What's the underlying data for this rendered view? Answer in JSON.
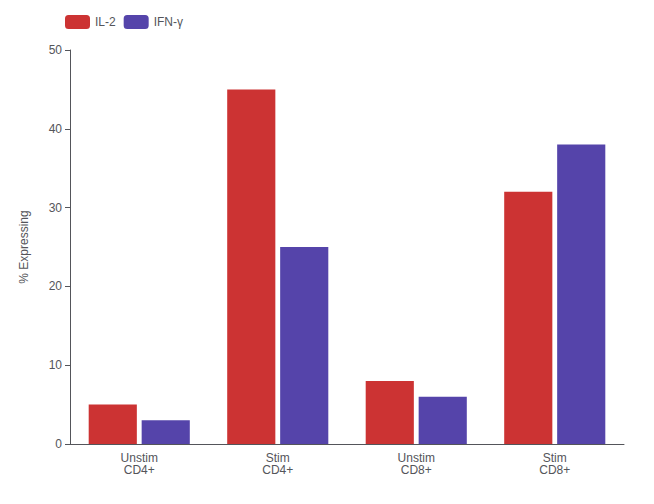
{
  "chart_data": {
    "type": "bar",
    "categories": [
      "Unstim\nCD4+",
      "Stim\nCD4+",
      "Unstim\nCD8+",
      "Stim\nCD8+"
    ],
    "series": [
      {
        "name": "IL-2",
        "color": "#cc3333",
        "values": [
          5,
          45,
          8,
          32
        ]
      },
      {
        "name": "IFN-γ",
        "color": "#5544aa",
        "values": [
          3,
          25,
          6,
          38
        ]
      }
    ],
    "ylabel": "% Expressing",
    "ylim": [
      0,
      50
    ],
    "yticks": [
      0,
      10,
      20,
      30,
      40,
      50
    ],
    "legend": "upper left",
    "grid": false
  }
}
